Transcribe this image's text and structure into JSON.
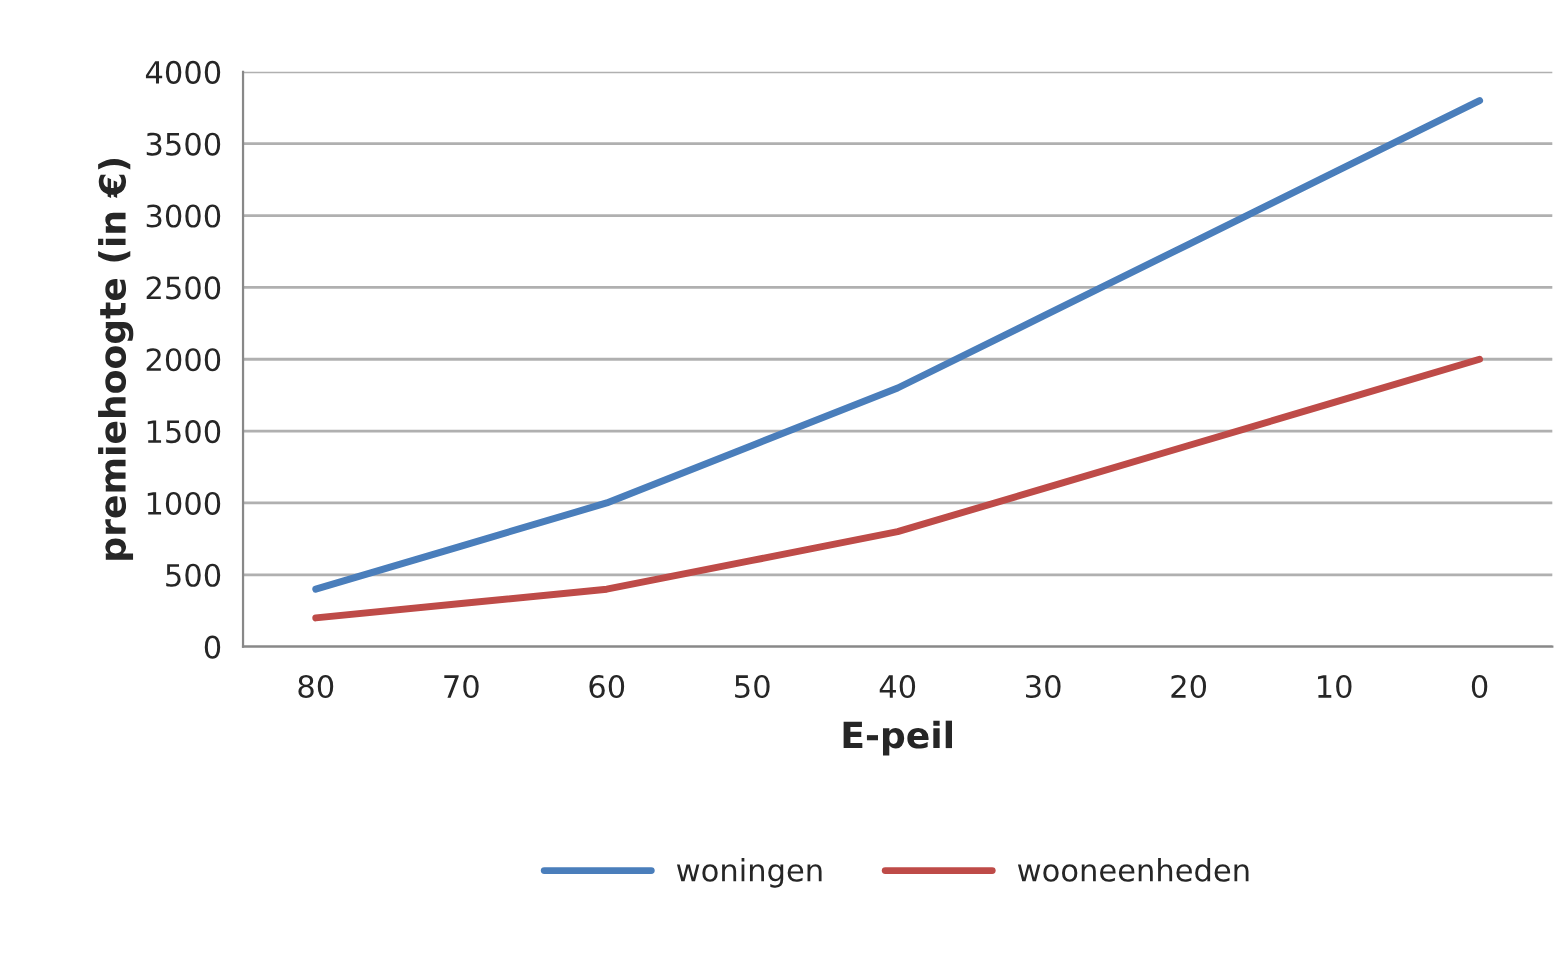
{
  "chart_data": {
    "type": "line",
    "xlabel": "E-peil",
    "ylabel": "premiehoogte (in €)",
    "categories": [
      "80",
      "70",
      "60",
      "50",
      "40",
      "30",
      "20",
      "10",
      "0"
    ],
    "series": [
      {
        "name": "woningen",
        "color": "#4a7ebb",
        "values": [
          400,
          700,
          1000,
          1400,
          1800,
          2300,
          2800,
          3300,
          3800
        ]
      },
      {
        "name": "wooneenheden",
        "color": "#be4b48",
        "values": [
          200,
          300,
          400,
          600,
          800,
          1100,
          1400,
          1700,
          2000
        ]
      }
    ],
    "ylim": [
      0,
      4000
    ],
    "yticks": [
      0,
      500,
      1000,
      1500,
      2000,
      2500,
      3000,
      3500,
      4000
    ],
    "grid": "y",
    "legend": "bottom",
    "marker": "none",
    "line_style": "solid"
  }
}
